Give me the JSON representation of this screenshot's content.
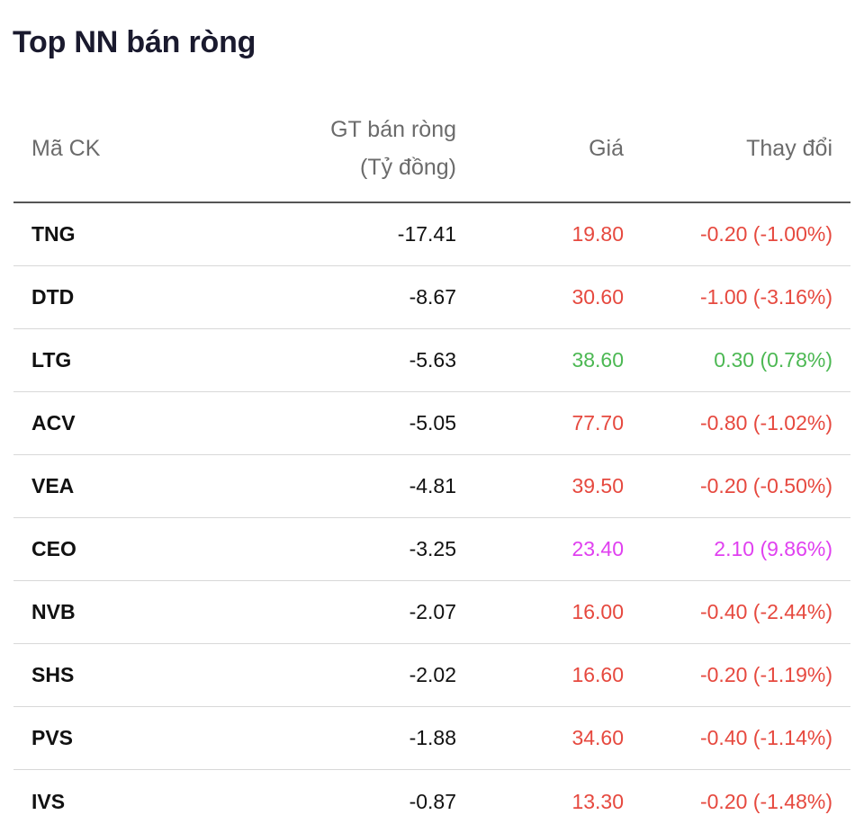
{
  "title": "Top NN bán ròng",
  "columns": {
    "ticker": "Mã CK",
    "net_value_line1": "GT bán ròng",
    "net_value_line2": "(Tỷ đồng)",
    "price": "Giá",
    "change": "Thay đổi"
  },
  "colors": {
    "down": "#e6493f",
    "up": "#4cb853",
    "ceiling": "#e040f0"
  },
  "rows": [
    {
      "ticker": "TNG",
      "net": "-17.41",
      "price": "19.80",
      "change": "-0.20 (-1.00%)",
      "trend": "down"
    },
    {
      "ticker": "DTD",
      "net": "-8.67",
      "price": "30.60",
      "change": "-1.00 (-3.16%)",
      "trend": "down"
    },
    {
      "ticker": "LTG",
      "net": "-5.63",
      "price": "38.60",
      "change": "0.30 (0.78%)",
      "trend": "up"
    },
    {
      "ticker": "ACV",
      "net": "-5.05",
      "price": "77.70",
      "change": "-0.80 (-1.02%)",
      "trend": "down"
    },
    {
      "ticker": "VEA",
      "net": "-4.81",
      "price": "39.50",
      "change": "-0.20 (-0.50%)",
      "trend": "down"
    },
    {
      "ticker": "CEO",
      "net": "-3.25",
      "price": "23.40",
      "change": "2.10 (9.86%)",
      "trend": "ceil"
    },
    {
      "ticker": "NVB",
      "net": "-2.07",
      "price": "16.00",
      "change": "-0.40 (-2.44%)",
      "trend": "down"
    },
    {
      "ticker": "SHS",
      "net": "-2.02",
      "price": "16.60",
      "change": "-0.20 (-1.19%)",
      "trend": "down"
    },
    {
      "ticker": "PVS",
      "net": "-1.88",
      "price": "34.60",
      "change": "-0.40 (-1.14%)",
      "trend": "down"
    },
    {
      "ticker": "IVS",
      "net": "-0.87",
      "price": "13.30",
      "change": "-0.20 (-1.48%)",
      "trend": "down"
    }
  ]
}
